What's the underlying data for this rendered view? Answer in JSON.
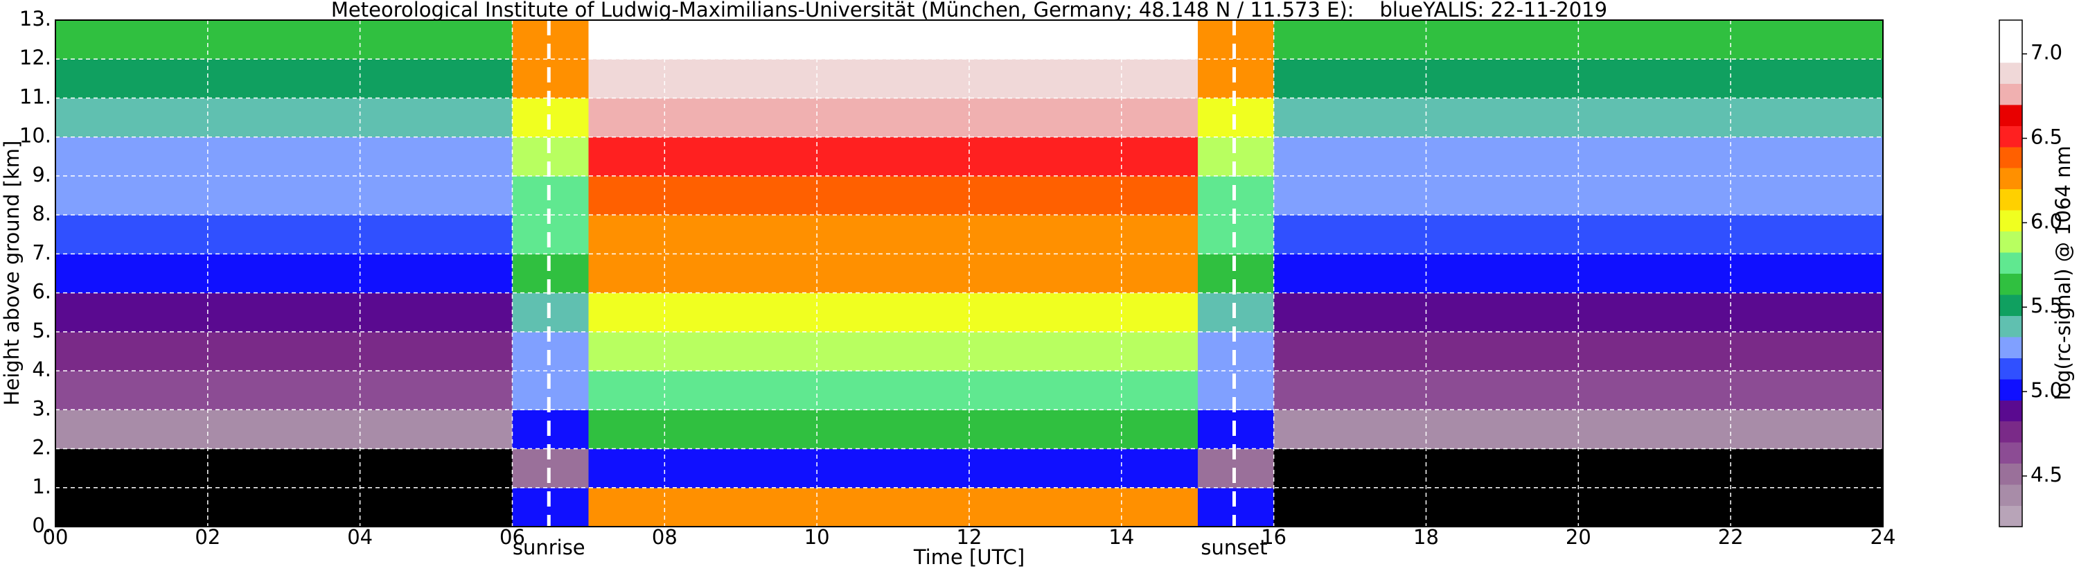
{
  "chart_data": {
    "type": "heatmap",
    "title": "Meteorological Institute of Ludwig-Maximilians-Universität (München, Germany; 48.148 N / 11.573 E):    blueYALIS: 22-11-2019",
    "x_label": "Time [UTC]",
    "y_label": "Height above ground [km]",
    "colorbar_label": "log(rc-signal) @ 1064 nm",
    "xbins": [
      0,
      1,
      2,
      3,
      4,
      5,
      6,
      7,
      8,
      9,
      10,
      11,
      12,
      13,
      14,
      15,
      16,
      17,
      18,
      19,
      20,
      21,
      22,
      23,
      24
    ],
    "ybins": [
      0,
      1,
      2,
      3,
      4,
      5,
      6,
      7,
      8,
      9,
      10,
      11,
      12,
      13
    ],
    "z": [
      [
        4.0,
        4.0,
        4.0,
        4.0,
        4.0,
        4.0,
        5.0,
        6.2,
        6.2,
        6.2,
        6.2,
        6.2,
        6.2,
        6.2,
        6.2,
        5.0,
        4.0,
        4.0,
        4.0,
        4.0,
        4.0,
        4.0,
        4.0,
        4.0
      ],
      [
        4.0,
        4.0,
        4.0,
        4.0,
        4.0,
        4.0,
        4.5,
        5.0,
        5.0,
        5.0,
        5.0,
        5.0,
        5.0,
        5.0,
        5.0,
        4.5,
        4.0,
        4.0,
        4.0,
        4.0,
        4.0,
        4.0,
        4.0,
        4.0
      ],
      [
        4.4,
        4.4,
        4.4,
        4.4,
        4.4,
        4.4,
        5.0,
        5.6,
        5.6,
        5.6,
        5.6,
        5.6,
        5.6,
        5.6,
        5.6,
        5.0,
        4.4,
        4.4,
        4.4,
        4.4,
        4.4,
        4.4,
        4.4,
        4.4
      ],
      [
        4.6,
        4.6,
        4.6,
        4.6,
        4.6,
        4.6,
        5.2,
        5.8,
        5.8,
        5.8,
        5.8,
        5.8,
        5.8,
        5.8,
        5.8,
        5.2,
        4.6,
        4.6,
        4.6,
        4.6,
        4.6,
        4.6,
        4.6,
        4.6
      ],
      [
        4.8,
        4.8,
        4.8,
        4.8,
        4.8,
        4.8,
        5.3,
        5.9,
        5.9,
        5.9,
        5.9,
        5.9,
        5.9,
        5.9,
        5.9,
        5.3,
        4.8,
        4.8,
        4.8,
        4.8,
        4.8,
        4.8,
        4.8,
        4.8
      ],
      [
        4.9,
        4.9,
        4.9,
        4.9,
        4.9,
        4.9,
        5.4,
        6.0,
        6.0,
        6.0,
        6.0,
        6.0,
        6.0,
        6.0,
        6.0,
        5.4,
        4.9,
        4.9,
        4.9,
        4.9,
        4.9,
        4.9,
        4.9,
        4.9
      ],
      [
        5.0,
        5.0,
        5.0,
        5.0,
        5.0,
        5.0,
        5.6,
        6.2,
        6.2,
        6.2,
        6.2,
        6.2,
        6.2,
        6.2,
        6.2,
        5.6,
        5.0,
        5.0,
        5.0,
        5.0,
        5.0,
        5.0,
        5.0,
        5.0
      ],
      [
        5.1,
        5.1,
        5.1,
        5.1,
        5.1,
        5.1,
        5.7,
        6.3,
        6.3,
        6.3,
        6.3,
        6.3,
        6.3,
        6.3,
        6.3,
        5.7,
        5.1,
        5.1,
        5.1,
        5.1,
        5.1,
        5.1,
        5.1,
        5.1
      ],
      [
        5.2,
        5.2,
        5.2,
        5.2,
        5.2,
        5.2,
        5.8,
        6.4,
        6.4,
        6.4,
        6.4,
        6.4,
        6.4,
        6.4,
        6.4,
        5.8,
        5.2,
        5.2,
        5.2,
        5.2,
        5.2,
        5.2,
        5.2,
        5.2
      ],
      [
        5.3,
        5.3,
        5.3,
        5.3,
        5.3,
        5.3,
        5.9,
        6.5,
        6.5,
        6.5,
        6.5,
        6.5,
        6.5,
        6.5,
        6.5,
        5.9,
        5.3,
        5.3,
        5.3,
        5.3,
        5.3,
        5.3,
        5.3,
        5.3
      ],
      [
        5.4,
        5.4,
        5.4,
        5.4,
        5.4,
        5.4,
        6.0,
        6.7,
        6.7,
        6.7,
        6.7,
        6.7,
        6.7,
        6.7,
        6.7,
        6.0,
        5.4,
        5.4,
        5.4,
        5.4,
        5.4,
        5.4,
        5.4,
        5.4
      ],
      [
        5.5,
        5.5,
        5.5,
        5.5,
        5.5,
        5.5,
        6.2,
        6.9,
        6.9,
        6.9,
        6.9,
        6.9,
        6.9,
        6.9,
        6.9,
        6.2,
        5.5,
        5.5,
        5.5,
        5.5,
        5.5,
        5.5,
        5.5,
        5.5
      ],
      [
        5.6,
        5.6,
        5.6,
        5.6,
        5.6,
        5.6,
        6.3,
        7.0,
        7.0,
        7.0,
        7.0,
        7.0,
        7.0,
        7.0,
        7.0,
        6.3,
        5.6,
        5.6,
        5.6,
        5.6,
        5.6,
        5.6,
        5.6,
        5.6
      ]
    ],
    "xlim": [
      0,
      24
    ],
    "ylim": [
      0,
      13
    ],
    "xticks": [
      {
        "value": 0,
        "label": "00"
      },
      {
        "value": 2,
        "label": "02"
      },
      {
        "value": 4,
        "label": "04"
      },
      {
        "value": 6,
        "label": "06"
      },
      {
        "value": 8,
        "label": "08"
      },
      {
        "value": 10,
        "label": "10"
      },
      {
        "value": 12,
        "label": "12"
      },
      {
        "value": 14,
        "label": "14"
      },
      {
        "value": 16,
        "label": "16"
      },
      {
        "value": 18,
        "label": "18"
      },
      {
        "value": 20,
        "label": "20"
      },
      {
        "value": 22,
        "label": "22"
      },
      {
        "value": 24,
        "label": "24"
      }
    ],
    "yticks": [
      {
        "value": 0,
        "label": "0."
      },
      {
        "value": 1,
        "label": "1."
      },
      {
        "value": 2,
        "label": "2."
      },
      {
        "value": 3,
        "label": "3."
      },
      {
        "value": 4,
        "label": "4."
      },
      {
        "value": 5,
        "label": "5."
      },
      {
        "value": 6,
        "label": "6."
      },
      {
        "value": 7,
        "label": "7."
      },
      {
        "value": 8,
        "label": "8."
      },
      {
        "value": 9,
        "label": "9."
      },
      {
        "value": 10,
        "label": "10."
      },
      {
        "value": 11,
        "label": "11."
      },
      {
        "value": 12,
        "label": "12."
      },
      {
        "value": 13,
        "label": "13."
      }
    ],
    "grid": true,
    "grid_color": "#ffffff",
    "clim": [
      4.2,
      7.2
    ],
    "cticks": [
      4.5,
      {
        "value": 5,
        "label": "5.0"
      },
      5.5,
      {
        "value": 6,
        "label": "6.0"
      },
      6.5,
      {
        "value": 7,
        "label": "7.0"
      }
    ],
    "under_color": "#000000",
    "colormap": [
      "#b8a4b8",
      "#a88ca8",
      "#9a709a",
      "#8c4c94",
      "#7a2a88",
      "#5a0a90",
      "#1010ff",
      "#3050ff",
      "#80a0ff",
      "#60c0b0",
      "#10a060",
      "#30c040",
      "#60e890",
      "#b8ff60",
      "#f0ff20",
      "#ffd000",
      "#ff9000",
      "#ff6000",
      "#ff2020",
      "#e80000",
      "#f0b0b0",
      "#f0d8d8",
      "#ffffff",
      "#ffffff"
    ],
    "vlines": [
      {
        "x": 6.48,
        "label": "sunrise"
      },
      {
        "x": 15.48,
        "label": "sunset"
      }
    ]
  }
}
